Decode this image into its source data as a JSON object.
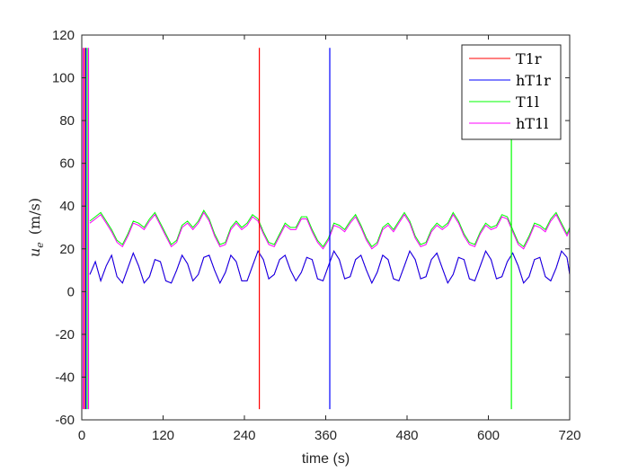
{
  "chart_data": {
    "type": "line",
    "title": "",
    "xlabel": "time (s)",
    "ylabel_symbol": "u",
    "ylabel_subscript": "e",
    "ylabel_unit": "(m/s)",
    "xlim": [
      0,
      720
    ],
    "ylim": [
      -60,
      120
    ],
    "xticks": [
      0,
      120,
      240,
      360,
      480,
      600,
      720
    ],
    "yticks": [
      -60,
      -40,
      -20,
      0,
      20,
      40,
      60,
      80,
      100,
      120
    ],
    "grid": false,
    "legend_position": "top-right",
    "spike_times": [
      2,
      4,
      6,
      8,
      10,
      262,
      366,
      634
    ],
    "series": [
      {
        "name": "T1r",
        "color": "#ff0000",
        "x": [
          12,
          20,
          28,
          36,
          44,
          52,
          60,
          68,
          76,
          84,
          92,
          100,
          108,
          116,
          124,
          132,
          140,
          148,
          156,
          164,
          172,
          180,
          188,
          196,
          204,
          212,
          220,
          228,
          236,
          244,
          252,
          260,
          268,
          276,
          284,
          292,
          300,
          308,
          316,
          324,
          332,
          340,
          348,
          356,
          364,
          372,
          380,
          388,
          396,
          404,
          412,
          420,
          428,
          436,
          444,
          452,
          460,
          468,
          476,
          484,
          492,
          500,
          508,
          516,
          524,
          532,
          540,
          548,
          556,
          564,
          572,
          580,
          588,
          596,
          604,
          612,
          620,
          628,
          636,
          644,
          652,
          660,
          668,
          676,
          684,
          692,
          700,
          708,
          716,
          720
        ],
        "y": [
          8,
          14,
          5,
          12,
          17,
          7,
          4,
          11,
          18,
          12,
          4,
          7,
          15,
          14,
          5,
          4,
          10,
          17,
          13,
          5,
          8,
          16,
          17,
          10,
          4,
          9,
          17,
          14,
          5,
          5,
          12,
          19,
          15,
          6,
          8,
          15,
          17,
          10,
          5,
          9,
          16,
          15,
          6,
          5,
          12,
          19,
          15,
          6,
          7,
          15,
          17,
          10,
          4,
          9,
          17,
          15,
          6,
          5,
          12,
          19,
          15,
          6,
          7,
          15,
          18,
          11,
          4,
          8,
          16,
          15,
          6,
          5,
          12,
          19,
          15,
          6,
          7,
          14,
          18,
          12,
          4,
          7,
          15,
          16,
          7,
          5,
          11,
          19,
          16,
          8
        ]
      },
      {
        "name": "hT1r",
        "color": "#0000ff",
        "x": [
          12,
          20,
          28,
          36,
          44,
          52,
          60,
          68,
          76,
          84,
          92,
          100,
          108,
          116,
          124,
          132,
          140,
          148,
          156,
          164,
          172,
          180,
          188,
          196,
          204,
          212,
          220,
          228,
          236,
          244,
          252,
          260,
          268,
          276,
          284,
          292,
          300,
          308,
          316,
          324,
          332,
          340,
          348,
          356,
          364,
          372,
          380,
          388,
          396,
          404,
          412,
          420,
          428,
          436,
          444,
          452,
          460,
          468,
          476,
          484,
          492,
          500,
          508,
          516,
          524,
          532,
          540,
          548,
          556,
          564,
          572,
          580,
          588,
          596,
          604,
          612,
          620,
          628,
          636,
          644,
          652,
          660,
          668,
          676,
          684,
          692,
          700,
          708,
          716,
          720
        ],
        "y": [
          8,
          14,
          5,
          12,
          17,
          7,
          4,
          11,
          18,
          12,
          4,
          7,
          15,
          14,
          5,
          4,
          10,
          17,
          13,
          5,
          8,
          16,
          17,
          10,
          4,
          9,
          17,
          14,
          5,
          5,
          12,
          19,
          15,
          6,
          8,
          15,
          17,
          10,
          5,
          9,
          16,
          15,
          6,
          5,
          12,
          19,
          15,
          6,
          7,
          15,
          17,
          10,
          4,
          9,
          17,
          15,
          6,
          5,
          12,
          19,
          15,
          6,
          7,
          15,
          18,
          11,
          4,
          8,
          16,
          15,
          6,
          5,
          12,
          19,
          15,
          6,
          7,
          14,
          18,
          12,
          4,
          7,
          15,
          16,
          7,
          5,
          11,
          19,
          16,
          8
        ]
      },
      {
        "name": "T1l",
        "color": "#00ff00",
        "x": [
          12,
          20,
          28,
          36,
          44,
          52,
          60,
          68,
          76,
          84,
          92,
          100,
          108,
          116,
          124,
          132,
          140,
          148,
          156,
          164,
          172,
          180,
          188,
          196,
          204,
          212,
          220,
          228,
          236,
          244,
          252,
          260,
          268,
          276,
          284,
          292,
          300,
          308,
          316,
          324,
          332,
          340,
          348,
          356,
          364,
          372,
          380,
          388,
          396,
          404,
          412,
          420,
          428,
          436,
          444,
          452,
          460,
          468,
          476,
          484,
          492,
          500,
          508,
          516,
          524,
          532,
          540,
          548,
          556,
          564,
          572,
          580,
          588,
          596,
          604,
          612,
          620,
          628,
          636,
          644,
          652,
          660,
          668,
          676,
          684,
          692,
          700,
          708,
          716,
          720
        ],
        "y": [
          33,
          35,
          37,
          33,
          29,
          24,
          22,
          27,
          33,
          32,
          30,
          34,
          37,
          32,
          27,
          22,
          24,
          31,
          33,
          30,
          33,
          38,
          34,
          27,
          22,
          23,
          30,
          33,
          30,
          32,
          36,
          34,
          28,
          23,
          22,
          27,
          32,
          30,
          30,
          35,
          35,
          29,
          24,
          21,
          25,
          32,
          31,
          29,
          33,
          36,
          31,
          25,
          21,
          23,
          30,
          32,
          29,
          33,
          37,
          33,
          26,
          22,
          23,
          29,
          32,
          30,
          32,
          37,
          33,
          27,
          23,
          22,
          28,
          32,
          30,
          31,
          36,
          35,
          29,
          23,
          21,
          26,
          32,
          31,
          29,
          34,
          37,
          32,
          27,
          30
        ]
      },
      {
        "name": "hT1l",
        "color": "#ff00ff",
        "x": [
          12,
          20,
          28,
          36,
          44,
          52,
          60,
          68,
          76,
          84,
          92,
          100,
          108,
          116,
          124,
          132,
          140,
          148,
          156,
          164,
          172,
          180,
          188,
          196,
          204,
          212,
          220,
          228,
          236,
          244,
          252,
          260,
          268,
          276,
          284,
          292,
          300,
          308,
          316,
          324,
          332,
          340,
          348,
          356,
          364,
          372,
          380,
          388,
          396,
          404,
          412,
          420,
          428,
          436,
          444,
          452,
          460,
          468,
          476,
          484,
          492,
          500,
          508,
          516,
          524,
          532,
          540,
          548,
          556,
          564,
          572,
          580,
          588,
          596,
          604,
          612,
          620,
          628,
          636,
          644,
          652,
          660,
          668,
          676,
          684,
          692,
          700,
          708,
          716,
          720
        ],
        "y": [
          32,
          34,
          36,
          32,
          28,
          23,
          21,
          26,
          32,
          31,
          29,
          33,
          36,
          31,
          26,
          21,
          23,
          30,
          32,
          29,
          32,
          37,
          33,
          26,
          21,
          22,
          29,
          32,
          29,
          31,
          35,
          33,
          27,
          22,
          21,
          26,
          31,
          29,
          29,
          34,
          34,
          28,
          23,
          20,
          24,
          31,
          30,
          28,
          32,
          35,
          30,
          24,
          20,
          22,
          29,
          31,
          28,
          32,
          36,
          32,
          25,
          21,
          22,
          28,
          31,
          29,
          31,
          36,
          32,
          26,
          22,
          21,
          27,
          31,
          29,
          30,
          35,
          34,
          28,
          22,
          20,
          25,
          31,
          30,
          28,
          33,
          36,
          31,
          26,
          29
        ]
      }
    ]
  }
}
